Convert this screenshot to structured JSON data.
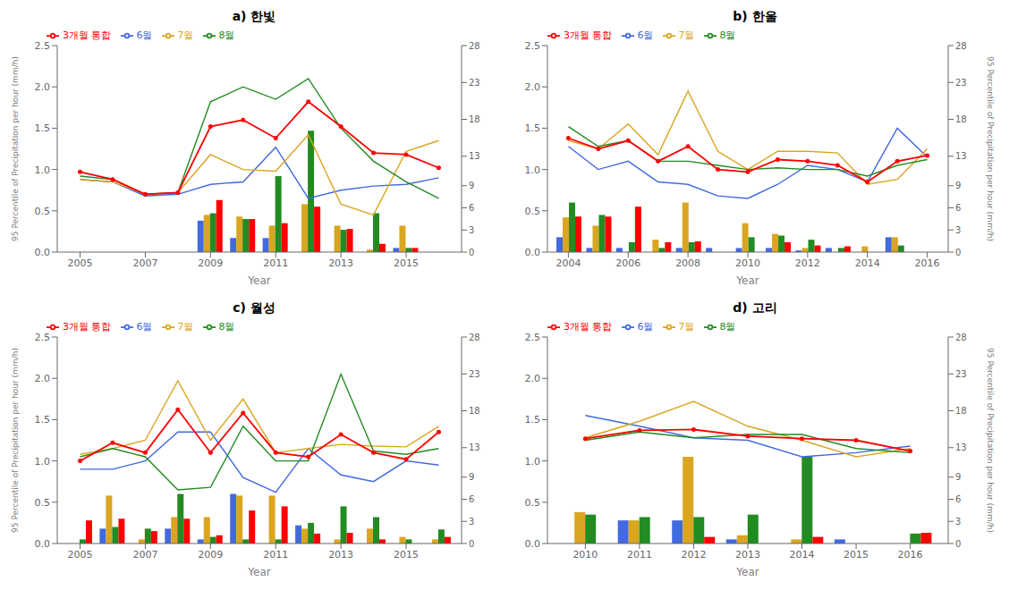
{
  "chart_data": [
    {
      "type": "bar",
      "title": "a) 한빛",
      "x_label": "Year",
      "y_label": "95 Percentile of Precipitation per hour (mm/h)",
      "x": [
        2005,
        2006,
        2007,
        2008,
        2009,
        2010,
        2011,
        2012,
        2013,
        2014,
        2015,
        2016
      ],
      "xlim": [
        2004.3,
        2016.7
      ],
      "xticks": [
        2005,
        2007,
        2009,
        2011,
        2013,
        2015
      ],
      "ylim": [
        0.0,
        2.5
      ],
      "yticks": [
        {
          "value": 0.0,
          "label": "0.0"
        },
        0.5,
        {
          "value": 1.0,
          "label": "1.0"
        },
        1.5,
        {
          "value": 2.0,
          "label": "2.0"
        },
        2.5
      ],
      "y2lim": [
        0,
        28
      ],
      "y2ticks": [
        0,
        3,
        6,
        9,
        13,
        18,
        23,
        28
      ],
      "grid": false,
      "legend": "upper left",
      "series": [
        {
          "type": "bar",
          "color": "#4169E1",
          "values": [
            0.0,
            0.0,
            0.0,
            0.0,
            0.38,
            0.17,
            0.17,
            0.0,
            0.0,
            0.0,
            0.05,
            0.0
          ]
        },
        {
          "type": "bar",
          "color": "#DAA520",
          "values": [
            0.0,
            0.0,
            0.0,
            0.0,
            0.45,
            0.43,
            0.32,
            0.58,
            0.32,
            0.03,
            0.32,
            0.0
          ]
        },
        {
          "type": "bar",
          "color": "#228B22",
          "values": [
            0.0,
            0.0,
            0.0,
            0.0,
            0.47,
            0.4,
            0.92,
            1.47,
            0.27,
            0.47,
            0.05,
            0.0
          ]
        },
        {
          "type": "bar",
          "color": "#FF0000",
          "values": [
            0.0,
            0.0,
            0.0,
            0.0,
            0.63,
            0.4,
            0.35,
            0.55,
            0.28,
            0.1,
            0.05,
            0.0
          ]
        },
        {
          "type": "line",
          "name": "6월",
          "color": "#4169E1",
          "values": [
            0.88,
            0.85,
            0.68,
            0.7,
            0.82,
            0.85,
            1.27,
            0.65,
            0.75,
            0.8,
            0.82,
            0.9
          ]
        },
        {
          "type": "line",
          "name": "7월",
          "color": "#DAA520",
          "values": [
            0.88,
            0.85,
            0.7,
            0.72,
            1.18,
            1.0,
            0.98,
            1.42,
            0.58,
            0.45,
            1.22,
            1.35
          ]
        },
        {
          "type": "line",
          "name": "8월",
          "color": "#228B22",
          "values": [
            0.92,
            0.88,
            0.7,
            0.72,
            1.82,
            2.0,
            1.85,
            2.1,
            1.5,
            1.1,
            0.85,
            0.65
          ]
        },
        {
          "type": "line",
          "name": "3개월 통합",
          "color": "#FF0000",
          "marker": "o",
          "values": [
            0.97,
            0.88,
            0.7,
            0.72,
            1.52,
            1.6,
            1.38,
            1.82,
            1.52,
            1.2,
            1.18,
            1.02
          ]
        }
      ]
    },
    {
      "type": "bar",
      "title": "b) 한울",
      "x_label": "Year",
      "y2_label": "95 Percentile of Precipitation per hour (mm/h)",
      "x": [
        2004,
        2005,
        2006,
        2007,
        2008,
        2009,
        2010,
        2011,
        2012,
        2013,
        2014,
        2015,
        2016
      ],
      "xlim": [
        2003.3,
        2016.7
      ],
      "xticks": [
        2004,
        2006,
        2008,
        2010,
        2012,
        2014,
        2016
      ],
      "ylim": [
        0.0,
        2.5
      ],
      "yticks": [
        {
          "value": 0.0,
          "label": "0.0"
        },
        0.5,
        {
          "value": 1.0,
          "label": "1.0"
        },
        1.5,
        {
          "value": 2.0,
          "label": "2.0"
        },
        2.5
      ],
      "y2lim": [
        0,
        28
      ],
      "y2ticks": [
        0,
        3,
        6,
        9,
        13,
        18,
        23,
        28
      ],
      "grid": false,
      "legend": "upper left",
      "series": [
        {
          "type": "bar",
          "color": "#4169E1",
          "values": [
            0.18,
            0.05,
            0.05,
            0.0,
            0.05,
            0.05,
            0.05,
            0.05,
            0.02,
            0.05,
            0.0,
            0.18,
            0.0
          ]
        },
        {
          "type": "bar",
          "color": "#DAA520",
          "values": [
            0.42,
            0.32,
            0.0,
            0.15,
            0.6,
            0.0,
            0.35,
            0.22,
            0.05,
            0.0,
            0.07,
            0.18,
            0.0
          ]
        },
        {
          "type": "bar",
          "color": "#228B22",
          "values": [
            0.6,
            0.45,
            0.12,
            0.05,
            0.12,
            0.0,
            0.18,
            0.2,
            0.15,
            0.05,
            0.0,
            0.08,
            0.0
          ]
        },
        {
          "type": "bar",
          "color": "#FF0000",
          "values": [
            0.43,
            0.43,
            0.55,
            0.12,
            0.13,
            0.0,
            0.0,
            0.12,
            0.08,
            0.07,
            0.0,
            0.0,
            0.0
          ]
        },
        {
          "type": "line",
          "name": "6월",
          "color": "#4169E1",
          "values": [
            1.28,
            1.0,
            1.1,
            0.85,
            0.82,
            0.68,
            0.65,
            0.82,
            1.05,
            1.0,
            0.85,
            1.5,
            1.15
          ]
        },
        {
          "type": "line",
          "name": "7월",
          "color": "#DAA520",
          "values": [
            1.35,
            1.25,
            1.55,
            1.18,
            1.95,
            1.22,
            1.0,
            1.22,
            1.22,
            1.2,
            0.82,
            0.88,
            1.25
          ]
        },
        {
          "type": "line",
          "name": "8월",
          "color": "#228B22",
          "values": [
            1.52,
            1.28,
            1.35,
            1.1,
            1.1,
            1.05,
            1.0,
            1.02,
            1.0,
            1.0,
            0.92,
            1.05,
            1.12
          ]
        },
        {
          "type": "line",
          "name": "3개월 통합",
          "color": "#FF0000",
          "marker": "o",
          "values": [
            1.38,
            1.25,
            1.35,
            1.1,
            1.28,
            1.0,
            0.97,
            1.12,
            1.1,
            1.05,
            0.85,
            1.1,
            1.17
          ]
        }
      ]
    },
    {
      "type": "bar",
      "title": "c) 월성",
      "x_label": "Year",
      "y_label": "95 Percentile of Precipitation per hour (mm/h)",
      "x": [
        2005,
        2006,
        2007,
        2008,
        2009,
        2010,
        2011,
        2012,
        2013,
        2014,
        2015,
        2016
      ],
      "xlim": [
        2004.3,
        2016.7
      ],
      "xticks": [
        2005,
        2007,
        2009,
        2011,
        2013,
        2015
      ],
      "ylim": [
        0.0,
        2.5
      ],
      "yticks": [
        {
          "value": 0.0,
          "label": "0.0"
        },
        0.5,
        {
          "value": 1.0,
          "label": "1.0"
        },
        1.5,
        {
          "value": 2.0,
          "label": "2.0"
        },
        2.5
      ],
      "y2lim": [
        0,
        28
      ],
      "y2ticks": [
        0,
        3,
        6,
        9,
        13,
        18,
        23,
        28
      ],
      "grid": false,
      "legend": "upper left",
      "series": [
        {
          "type": "bar",
          "color": "#4169E1",
          "values": [
            0.0,
            0.18,
            0.0,
            0.18,
            0.05,
            0.6,
            0.0,
            0.22,
            0.0,
            0.0,
            0.0,
            0.0
          ]
        },
        {
          "type": "bar",
          "color": "#DAA520",
          "values": [
            0.0,
            0.58,
            0.05,
            0.32,
            0.32,
            0.58,
            0.58,
            0.18,
            0.05,
            0.18,
            0.08,
            0.05
          ]
        },
        {
          "type": "bar",
          "color": "#228B22",
          "values": [
            0.05,
            0.2,
            0.18,
            0.6,
            0.08,
            0.05,
            0.05,
            0.25,
            0.45,
            0.32,
            0.05,
            0.17
          ]
        },
        {
          "type": "bar",
          "color": "#FF0000",
          "values": [
            0.28,
            0.3,
            0.15,
            0.3,
            0.1,
            0.4,
            0.45,
            0.12,
            0.13,
            0.05,
            0.0,
            0.08
          ]
        },
        {
          "type": "line",
          "name": "6월",
          "color": "#4169E1",
          "values": [
            0.9,
            0.9,
            1.0,
            1.35,
            1.35,
            0.8,
            0.62,
            1.15,
            0.83,
            0.75,
            1.0,
            0.95
          ]
        },
        {
          "type": "line",
          "name": "7월",
          "color": "#DAA520",
          "values": [
            1.08,
            1.15,
            1.25,
            1.97,
            1.25,
            1.75,
            1.1,
            1.15,
            1.2,
            1.18,
            1.17,
            1.42
          ]
        },
        {
          "type": "line",
          "name": "8월",
          "color": "#228B22",
          "values": [
            1.05,
            1.15,
            1.05,
            0.65,
            0.68,
            1.42,
            1.0,
            1.0,
            2.05,
            1.12,
            1.08,
            1.15
          ]
        },
        {
          "type": "line",
          "name": "3개월 통합",
          "color": "#FF0000",
          "marker": "o",
          "values": [
            1.0,
            1.22,
            1.1,
            1.62,
            1.1,
            1.58,
            1.1,
            1.05,
            1.32,
            1.1,
            1.02,
            1.35
          ]
        }
      ]
    },
    {
      "type": "bar",
      "title": "d) 고리",
      "x_label": "Year",
      "y2_label": "95 Percentile of Precipitation per hour (mm/h)",
      "x": [
        2010,
        2011,
        2012,
        2013,
        2014,
        2015,
        2016
      ],
      "xlim": [
        2009.3,
        2016.7
      ],
      "xticks": [
        2010,
        2011,
        2012,
        2013,
        2014,
        2015,
        2016
      ],
      "ylim": [
        0.0,
        2.5
      ],
      "yticks": [
        {
          "value": 0.0,
          "label": "0.0"
        },
        0.5,
        {
          "value": 1.0,
          "label": "1.0"
        },
        1.5,
        {
          "value": 2.0,
          "label": "2.0"
        },
        2.5
      ],
      "y2lim": [
        0,
        28
      ],
      "y2ticks": [
        0,
        3,
        6,
        9,
        13,
        18,
        23,
        28
      ],
      "grid": false,
      "legend": "upper left",
      "series": [
        {
          "type": "bar",
          "color": "#4169E1",
          "values": [
            0.0,
            0.28,
            0.28,
            0.05,
            0.0,
            0.05,
            0.0
          ]
        },
        {
          "type": "bar",
          "color": "#DAA520",
          "values": [
            0.38,
            0.28,
            1.05,
            0.1,
            0.05,
            0.0,
            0.0
          ]
        },
        {
          "type": "bar",
          "color": "#228B22",
          "values": [
            0.35,
            0.32,
            0.32,
            0.35,
            1.05,
            0.0,
            0.12
          ]
        },
        {
          "type": "bar",
          "color": "#FF0000",
          "values": [
            0.0,
            0.0,
            0.08,
            0.0,
            0.08,
            0.0,
            0.13
          ]
        },
        {
          "type": "line",
          "name": "6월",
          "color": "#4169E1",
          "values": [
            1.55,
            1.42,
            1.28,
            1.25,
            1.05,
            1.1,
            1.18
          ]
        },
        {
          "type": "line",
          "name": "7월",
          "color": "#DAA520",
          "values": [
            1.28,
            1.48,
            1.72,
            1.42,
            1.25,
            1.05,
            1.15
          ]
        },
        {
          "type": "line",
          "name": "8월",
          "color": "#228B22",
          "values": [
            1.25,
            1.35,
            1.28,
            1.32,
            1.32,
            1.15,
            1.1
          ]
        },
        {
          "type": "line",
          "name": "3개월 통합",
          "color": "#FF0000",
          "marker": "o",
          "values": [
            1.27,
            1.37,
            1.38,
            1.3,
            1.27,
            1.25,
            1.12
          ]
        }
      ]
    }
  ]
}
